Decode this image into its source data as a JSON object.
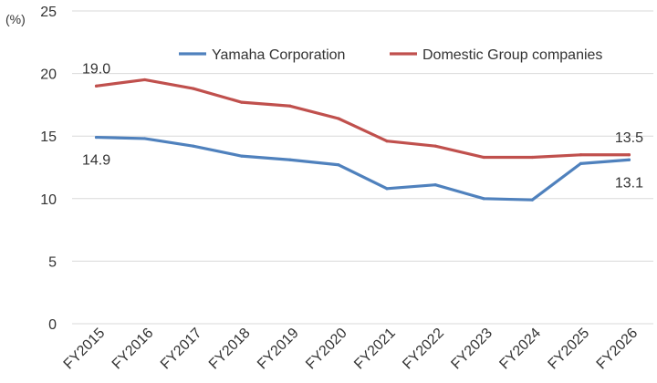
{
  "chart_data": {
    "type": "line",
    "title": "",
    "xlabel": "",
    "ylabel": "(%)",
    "ylim": [
      0,
      25
    ],
    "yticks": [
      0,
      5,
      10,
      15,
      20,
      25
    ],
    "grid": "horizontal",
    "legend_position": "top",
    "categories": [
      "FY2015",
      "FY2016",
      "FY2017",
      "FY2018",
      "FY2019",
      "FY2020",
      "FY2021",
      "FY2022",
      "FY2023",
      "FY2024",
      "FY2025",
      "FY2026"
    ],
    "series": [
      {
        "name": "Yamaha Corporation",
        "color": "#4f81bd",
        "values": [
          14.9,
          14.8,
          14.2,
          13.4,
          13.1,
          12.7,
          10.8,
          11.1,
          10.0,
          9.9,
          12.8,
          13.1
        ],
        "labels": [
          {
            "index": 0,
            "text": "14.9",
            "position": "below"
          },
          {
            "index": 11,
            "text": "13.1",
            "position": "below"
          }
        ]
      },
      {
        "name": "Domestic Group companies",
        "color": "#c0504d",
        "values": [
          19.0,
          19.5,
          18.8,
          17.7,
          17.4,
          16.4,
          14.6,
          14.2,
          13.3,
          13.3,
          13.5,
          13.5
        ],
        "labels": [
          {
            "index": 0,
            "text": "19.0",
            "position": "above"
          },
          {
            "index": 11,
            "text": "13.5",
            "position": "above"
          }
        ]
      }
    ]
  }
}
